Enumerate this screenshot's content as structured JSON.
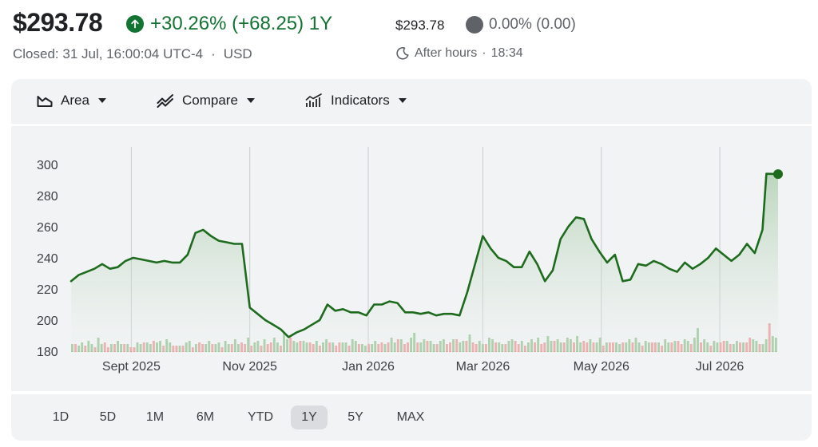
{
  "header": {
    "price": "$293.78",
    "change": "+30.26% (+68.25) 1Y",
    "closed": "Closed: 31 Jul, 16:00:04 UTC-4",
    "currency": "USD",
    "after_hours_price": "$293.78",
    "after_hours_change": "0.00% (0.00)",
    "after_hours_label": "After hours",
    "after_hours_time": "18:34"
  },
  "toolbar": {
    "area_label": "Area",
    "compare_label": "Compare",
    "indicators_label": "Indicators"
  },
  "ranges": [
    "1D",
    "5D",
    "1M",
    "6M",
    "YTD",
    "1Y",
    "5Y",
    "MAX"
  ],
  "active_range": "1Y",
  "colors": {
    "line": "#1e6b1e",
    "positive": "#137333",
    "volume_up": "#9cc89c",
    "volume_down": "#eba0a0",
    "gridline": "#c8cccf"
  },
  "chart_data": {
    "type": "area",
    "x_tick_labels": [
      "Sept 2025",
      "Nov 2025",
      "Jan 2026",
      "Mar 2026",
      "May 2026",
      "Jul 2026"
    ],
    "y_tick_labels": [
      "300",
      "280",
      "260",
      "240",
      "220",
      "200",
      "180"
    ],
    "ylim": [
      180,
      300
    ],
    "x_range": [
      "2025-08-01",
      "2026-07-31"
    ],
    "series": [
      {
        "points": [
          [
            "2025-08-01",
            225
          ],
          [
            "2025-08-05",
            229
          ],
          [
            "2025-08-09",
            231
          ],
          [
            "2025-08-13",
            233
          ],
          [
            "2025-08-17",
            236
          ],
          [
            "2025-08-21",
            233
          ],
          [
            "2025-08-25",
            234
          ],
          [
            "2025-08-29",
            238
          ],
          [
            "2025-09-02",
            240
          ],
          [
            "2025-09-06",
            239
          ],
          [
            "2025-09-10",
            238
          ],
          [
            "2025-09-14",
            237
          ],
          [
            "2025-09-18",
            238
          ],
          [
            "2025-09-22",
            237
          ],
          [
            "2025-09-26",
            237
          ],
          [
            "2025-09-30",
            242
          ],
          [
            "2025-10-04",
            256
          ],
          [
            "2025-10-08",
            258
          ],
          [
            "2025-10-12",
            254
          ],
          [
            "2025-10-16",
            251
          ],
          [
            "2025-10-20",
            250
          ],
          [
            "2025-10-24",
            249
          ],
          [
            "2025-10-28",
            249
          ],
          [
            "2025-11-01",
            208
          ],
          [
            "2025-11-05",
            204
          ],
          [
            "2025-11-09",
            200
          ],
          [
            "2025-11-13",
            197
          ],
          [
            "2025-11-17",
            194
          ],
          [
            "2025-11-21",
            189
          ],
          [
            "2025-11-25",
            192
          ],
          [
            "2025-11-29",
            194
          ],
          [
            "2025-12-03",
            197
          ],
          [
            "2025-12-07",
            200
          ],
          [
            "2025-12-11",
            210
          ],
          [
            "2025-12-15",
            206
          ],
          [
            "2025-12-19",
            207
          ],
          [
            "2025-12-23",
            205
          ],
          [
            "2025-12-27",
            205
          ],
          [
            "2025-12-31",
            203
          ],
          [
            "2026-01-04",
            210
          ],
          [
            "2026-01-08",
            210
          ],
          [
            "2026-01-12",
            212
          ],
          [
            "2026-01-16",
            211
          ],
          [
            "2026-01-20",
            205
          ],
          [
            "2026-01-24",
            205
          ],
          [
            "2026-01-28",
            204
          ],
          [
            "2026-02-01",
            205
          ],
          [
            "2026-02-05",
            203
          ],
          [
            "2026-02-09",
            204
          ],
          [
            "2026-02-13",
            204
          ],
          [
            "2026-02-17",
            203
          ],
          [
            "2026-02-21",
            218
          ],
          [
            "2026-02-25",
            236
          ],
          [
            "2026-03-01",
            254
          ],
          [
            "2026-03-05",
            246
          ],
          [
            "2026-03-09",
            240
          ],
          [
            "2026-03-13",
            238
          ],
          [
            "2026-03-17",
            234
          ],
          [
            "2026-03-21",
            234
          ],
          [
            "2026-03-25",
            244
          ],
          [
            "2026-03-29",
            236
          ],
          [
            "2026-04-02",
            225
          ],
          [
            "2026-04-06",
            232
          ],
          [
            "2026-04-10",
            252
          ],
          [
            "2026-04-14",
            260
          ],
          [
            "2026-04-18",
            266
          ],
          [
            "2026-04-22",
            265
          ],
          [
            "2026-04-26",
            252
          ],
          [
            "2026-04-30",
            244
          ],
          [
            "2026-05-04",
            237
          ],
          [
            "2026-05-08",
            242
          ],
          [
            "2026-05-12",
            225
          ],
          [
            "2026-05-16",
            226
          ],
          [
            "2026-05-20",
            236
          ],
          [
            "2026-05-24",
            235
          ],
          [
            "2026-05-28",
            238
          ],
          [
            "2026-06-01",
            236
          ],
          [
            "2026-06-05",
            233
          ],
          [
            "2026-06-09",
            231
          ],
          [
            "2026-06-13",
            237
          ],
          [
            "2026-06-17",
            233
          ],
          [
            "2026-06-21",
            236
          ],
          [
            "2026-06-25",
            240
          ],
          [
            "2026-06-29",
            246
          ],
          [
            "2026-07-03",
            242
          ],
          [
            "2026-07-07",
            238
          ],
          [
            "2026-07-11",
            242
          ],
          [
            "2026-07-15",
            249
          ],
          [
            "2026-07-19",
            243
          ],
          [
            "2026-07-23",
            258
          ],
          [
            "2026-07-25",
            294
          ],
          [
            "2026-07-31",
            293.78
          ]
        ]
      }
    ],
    "volume": {
      "up": [
        5,
        4,
        4,
        6,
        5,
        7,
        5,
        4,
        9,
        5,
        8,
        4,
        5,
        6,
        7,
        5,
        6,
        5,
        4,
        4,
        6,
        5,
        7,
        6,
        5,
        9,
        6,
        7,
        5,
        8,
        6,
        5,
        5,
        4,
        5,
        6,
        7,
        4,
        5,
        8,
        6,
        5,
        7,
        6,
        5,
        6,
        4,
        7,
        5,
        6,
        8,
        5,
        7,
        6,
        9,
        5,
        6,
        7,
        5,
        8,
        6,
        7,
        9,
        6,
        5,
        12,
        8,
        14,
        7,
        6,
        9,
        7,
        6,
        8,
        6,
        7,
        5,
        6,
        8,
        7,
        6,
        5,
        7,
        6,
        6,
        5,
        8,
        7,
        6,
        5,
        4,
        6,
        5,
        7,
        6,
        8,
        5,
        7,
        9,
        6,
        11,
        8,
        6,
        7,
        9,
        12,
        7,
        6,
        8,
        9,
        7,
        5,
        6,
        7,
        8,
        6,
        7,
        8,
        10,
        6,
        7,
        9,
        11,
        8,
        6,
        7,
        5,
        6,
        9,
        8,
        7,
        6,
        5,
        6,
        7,
        8,
        9,
        6,
        7,
        5,
        6,
        8,
        7,
        9,
        6,
        8,
        10,
        7,
        9,
        8,
        6,
        7,
        9,
        8,
        7,
        10,
        6,
        9,
        7,
        8,
        7,
        6,
        9,
        5,
        6,
        8,
        7,
        6,
        5,
        7,
        6,
        8,
        7,
        9,
        6,
        5,
        7,
        6,
        8,
        7,
        6,
        5,
        8,
        6,
        7,
        7,
        9,
        6,
        8,
        7,
        6,
        9,
        15,
        7,
        8,
        6,
        5,
        7,
        6,
        8,
        9,
        7,
        6,
        5,
        7,
        8,
        6,
        7,
        12,
        8,
        7,
        6,
        5,
        8,
        24,
        10,
        9
      ],
      "down": [
        4,
        5,
        3,
        5,
        4,
        6,
        4,
        3,
        7,
        4,
        6,
        3,
        4,
        5,
        6,
        4,
        5,
        4,
        3,
        3,
        5,
        4,
        6,
        5,
        4,
        7,
        5,
        6,
        4,
        6,
        5,
        4,
        4,
        3,
        4,
        5,
        6,
        3,
        4,
        6,
        5,
        4,
        6,
        5,
        4,
        5,
        3,
        6,
        4,
        5,
        6,
        4,
        6,
        5,
        7,
        4,
        5,
        6,
        4,
        6,
        5,
        6,
        7,
        5,
        4,
        10,
        6,
        9,
        5,
        5,
        7,
        6,
        5,
        6,
        5,
        6,
        4,
        5,
        6,
        6,
        5,
        4,
        6,
        5,
        5,
        4,
        6,
        6,
        5,
        4,
        3,
        5,
        4,
        6,
        5,
        6,
        4,
        6,
        7,
        5,
        8,
        6,
        5,
        6,
        7,
        9,
        6,
        5,
        6,
        7,
        6,
        4,
        5,
        6,
        6,
        5,
        6,
        6,
        8,
        5,
        6,
        7,
        9,
        6,
        5,
        6,
        4,
        5,
        7,
        6,
        6,
        5,
        4,
        5,
        6,
        6,
        7,
        5,
        6,
        4,
        5,
        6,
        6,
        7,
        5,
        6,
        8,
        6,
        7,
        6,
        5,
        6,
        7,
        6,
        6,
        8,
        5,
        7,
        6,
        6,
        6,
        5,
        7,
        4,
        5,
        6,
        6,
        5,
        4,
        6,
        5,
        6,
        6,
        7,
        5,
        4,
        6,
        5,
        6,
        6,
        5,
        4,
        6,
        5,
        6,
        6,
        7,
        5,
        6,
        6,
        5,
        7,
        11,
        6,
        6,
        5,
        4,
        6,
        5,
        6,
        7,
        6,
        5,
        4,
        6,
        6,
        5,
        6,
        9,
        6,
        6,
        5,
        4,
        6,
        18,
        8,
        7
      ]
    }
  }
}
